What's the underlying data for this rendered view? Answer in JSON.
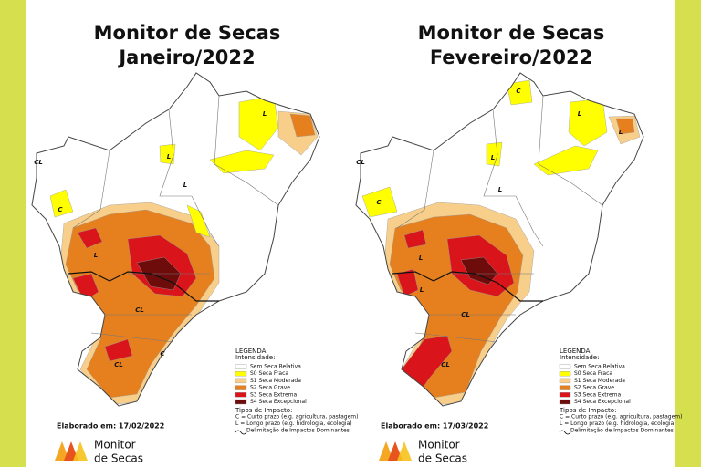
{
  "panels": [
    {
      "title": "Monitor de Secas",
      "subtitle": "Janeiro/2022",
      "map_labels": [
        "L",
        "CL",
        "C",
        "L",
        "L",
        "L",
        "CL",
        "CL",
        "C"
      ],
      "legend": {
        "title": "LEGENDA",
        "intensity_title": "Intensidade:",
        "items": [
          {
            "label": "Sem Seca Relativa",
            "color": "#ffffff"
          },
          {
            "label": "S0 Seca Fraca",
            "color": "#ffff00"
          },
          {
            "label": "S1 Seca Moderada",
            "color": "#f8cf8a"
          },
          {
            "label": "S2 Seca Grave",
            "color": "#e6801f"
          },
          {
            "label": "S3 Seca Extrema",
            "color": "#d9151b"
          },
          {
            "label": "S4 Seca Excepcional",
            "color": "#6e0b0b"
          }
        ],
        "impact_title": "Tipos de Impacto:",
        "impacts": [
          "C = Curto prazo (e.g. agricultura, pastagem)",
          "L = Longo prazo (e.g. hidrologia, ecologia)",
          "Delimitação de Impactos Dominantes"
        ]
      },
      "date": "Elaborado em: 17/02/2022",
      "logo": [
        "Monitor",
        "de Secas"
      ]
    },
    {
      "title": "Monitor de Secas",
      "subtitle": "Fevereiro/2022",
      "map_labels": [
        "C",
        "L",
        "CL",
        "C",
        "L",
        "L",
        "L",
        "L",
        "CL",
        "CL",
        "L"
      ],
      "legend": {
        "title": "LEGENDA",
        "intensity_title": "Intensidade:",
        "items": [
          {
            "label": "Sem Seca Relativa",
            "color": "#ffffff"
          },
          {
            "label": "S0 Seca Fraca",
            "color": "#ffff00"
          },
          {
            "label": "S1 Seca Moderada",
            "color": "#f8cf8a"
          },
          {
            "label": "S2 Seca Grave",
            "color": "#e6801f"
          },
          {
            "label": "S3 Seca Extrema",
            "color": "#d9151b"
          },
          {
            "label": "S4 Seca Excepcional",
            "color": "#6e0b0b"
          }
        ],
        "impact_title": "Tipos de Impacto:",
        "impacts": [
          "C = Curto prazo (e.g. agricultura, pastagem)",
          "L = Longo prazo (e.g. hidrologia, ecologia)",
          "Delimitação de Impactos Dominantes"
        ]
      },
      "date": "Elaborado em: 17/03/2022",
      "logo": [
        "Monitor",
        "de Secas"
      ]
    }
  ]
}
